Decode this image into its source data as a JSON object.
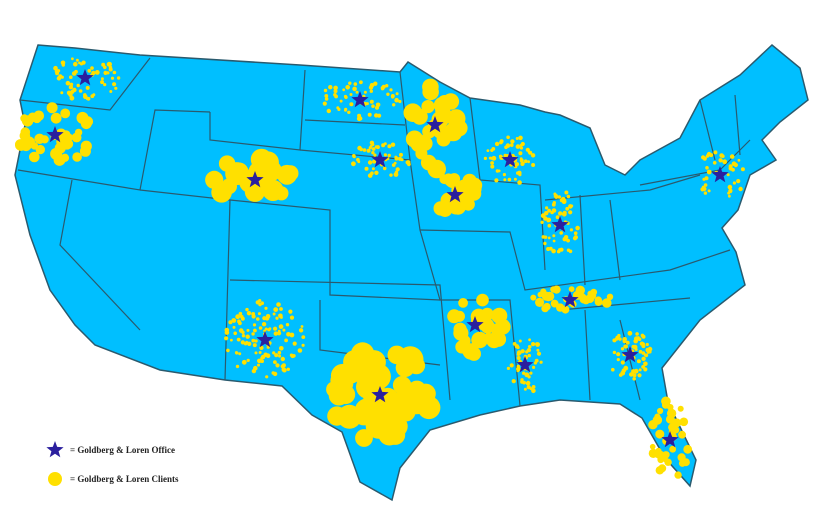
{
  "legend": [
    {
      "label": "= Goldberg & Loren Office"
    },
    {
      "label": "= Goldberg & Loren Clients"
    }
  ]
}
